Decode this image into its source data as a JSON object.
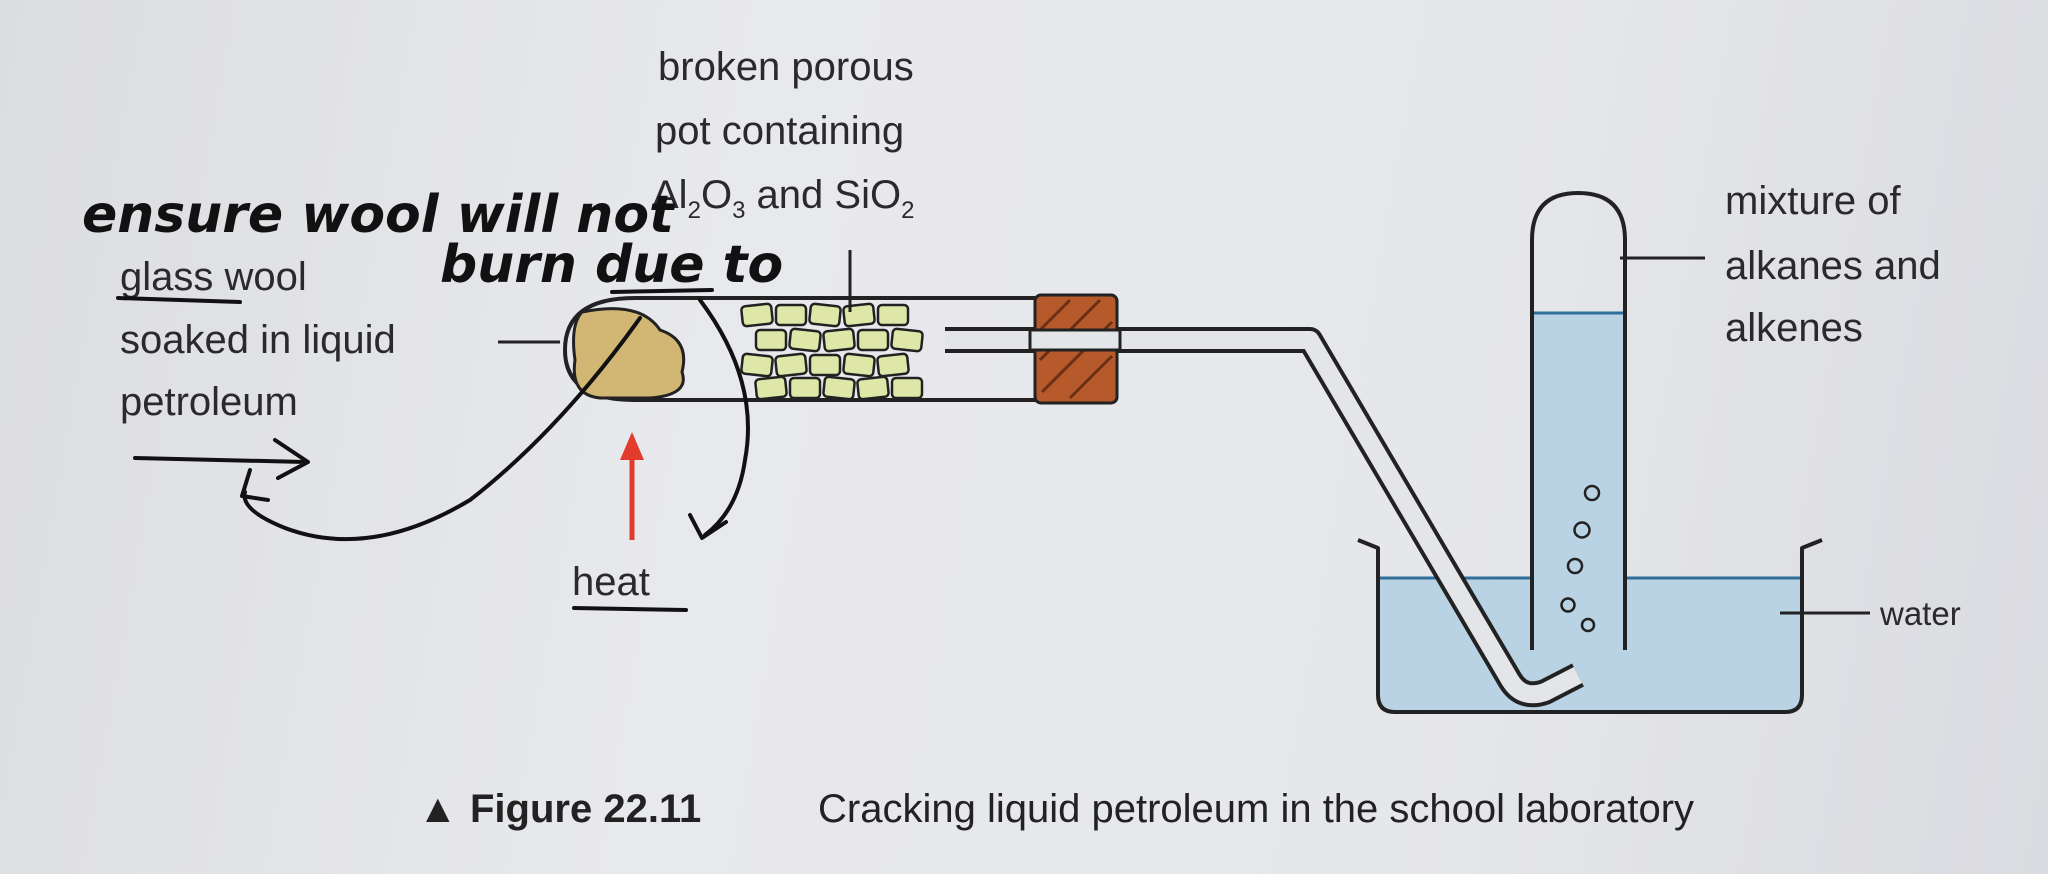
{
  "labels": {
    "catalyst_line1": "broken porous",
    "catalyst_line2": "pot containing",
    "catalyst_al": "Al",
    "catalyst_al_sub": "2",
    "catalyst_o": "O",
    "catalyst_o_sub": "3",
    "catalyst_and": " and SiO",
    "catalyst_si_sub": "2",
    "mixture_line1": "mixture of",
    "mixture_line2": "alkanes and",
    "mixture_line3": "alkenes",
    "wool_line1_underlined": "glass",
    "wool_line1_rest": " wool",
    "wool_line2": "soaked in liquid",
    "wool_line3": "petroleum",
    "heat": "heat",
    "water": "water"
  },
  "handwriting": {
    "line1": "ensure wool will not",
    "line2": "burn due to"
  },
  "caption": {
    "marker": "▲",
    "figure": "Figure 22.11",
    "text": "Cracking liquid petroleum in the school laboratory"
  },
  "colors": {
    "water": "#b9d3e4",
    "wool": "#d2b674",
    "catalyst": "#dfe7a8",
    "bung": "#b65a2c",
    "heat_arrow": "#e23b2c",
    "ink": "#222222"
  }
}
